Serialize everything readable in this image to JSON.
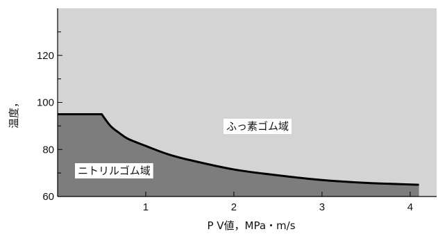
{
  "chart_data": {
    "type": "area",
    "xlabel": "P V値，MPa・m/s",
    "ylabel": "温度，",
    "xlim": [
      0,
      4.3
    ],
    "ylim": [
      60,
      140
    ],
    "x_ticks": [
      1,
      2,
      3,
      4
    ],
    "x_tick_labels": [
      "1",
      "2",
      "3",
      "4"
    ],
    "y_ticks": [
      60,
      80,
      100,
      120
    ],
    "y_tick_labels": [
      "60",
      "80",
      "100",
      "120"
    ],
    "y_minor_ticks": [
      70,
      90,
      110,
      130
    ],
    "grid": false,
    "boundary": {
      "x": [
        0,
        0.5,
        0.6,
        0.7,
        0.8,
        1.0,
        1.25,
        1.5,
        2.0,
        2.5,
        3.0,
        3.5,
        4.1
      ],
      "y": [
        95,
        95,
        90,
        87,
        84.5,
        81.5,
        78,
        75.5,
        71.5,
        69,
        67,
        65.8,
        65
      ]
    },
    "regions": [
      {
        "label": "ふっ素ゴム域",
        "position": "above",
        "color": "#d4d4d4"
      },
      {
        "label": "ニトリルゴム域",
        "position": "below",
        "color": "#7d7d7d"
      }
    ],
    "colors": {
      "background": "#d4d4d4",
      "lower_region": "#7d7d7d",
      "line": "#000000"
    }
  }
}
